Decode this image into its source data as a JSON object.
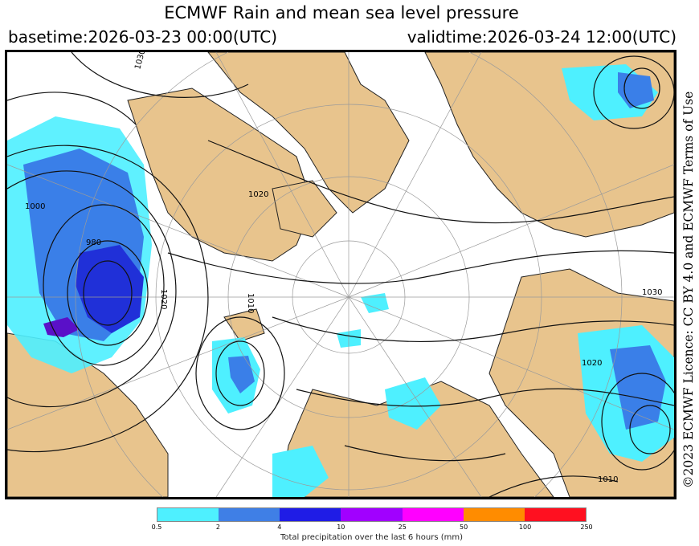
{
  "header": {
    "title": "ECMWF Rain and mean sea level pressure",
    "basetime": "basetime:2026-03-23 00:00(UTC)",
    "validtime": "validtime:2026-03-24 12:00(UTC)"
  },
  "map": {
    "isobar_labels": [
      "1030",
      "1020",
      "1000",
      "980",
      "1010",
      "1020",
      "1020",
      "1030",
      "1010"
    ],
    "colors": {
      "land": "#e8c48d",
      "ocean": "#ffffff",
      "rain_light": "#4ef0ff",
      "rain_mid": "#3a7fe8",
      "rain_heavy": "#2030d8",
      "rain_extreme": "#5a10c8"
    }
  },
  "legend": {
    "colors": [
      "#4ef0ff",
      "#3f7fe6",
      "#1f1ce6",
      "#a100ff",
      "#ff00ff",
      "#ff8c00",
      "#ff1020"
    ],
    "ticks": [
      "0.5",
      "2",
      "4",
      "10",
      "25",
      "50",
      "100",
      "250"
    ],
    "caption": "Total precipitation over the last 6 hours (mm)"
  },
  "licence": "©2023 ECMWF Licence: CC BY 4.0 and ECMWF Terms of Use"
}
